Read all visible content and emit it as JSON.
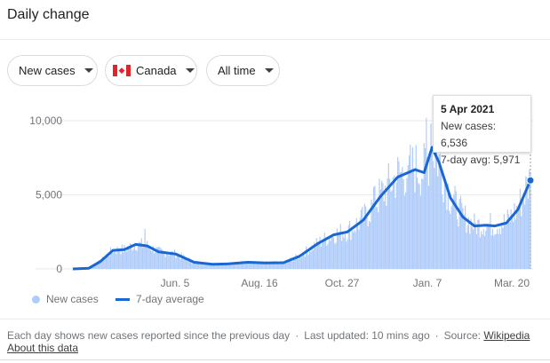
{
  "header": {
    "title": "Daily change"
  },
  "filters": {
    "metric": "New cases",
    "country": "Canada",
    "country_flag_icon": "canada-flag-icon",
    "range": "All time"
  },
  "tooltip": {
    "date": "5 Apr 2021",
    "new_cases_label": "New cases:",
    "new_cases_value": "6,536",
    "avg_label": "7-day avg:",
    "avg_value": "5,971"
  },
  "legend": {
    "bars": "New cases",
    "line": "7-day average"
  },
  "footer": {
    "note": "Each day shows new cases reported since the previous day",
    "updated": "Last updated: 10 mins ago",
    "source_label": "Source:",
    "source_link": "Wikipedia",
    "about": "About this data"
  },
  "colors": {
    "bars": "#aecbfa",
    "line": "#1967d2",
    "grid": "#e8eaed",
    "text": "#70757a"
  },
  "chart_data": {
    "type": "bar",
    "y_ticks": [
      {
        "value": 0,
        "label": "0"
      },
      {
        "value": 5000,
        "label": "5,000"
      },
      {
        "value": 10000,
        "label": "10,000"
      }
    ],
    "x_ticks": [
      "Jun. 5",
      "Aug. 16",
      "Oct. 27",
      "Jan. 7",
      "Mar. 20"
    ],
    "ylim": [
      0,
      10000
    ],
    "grid": true,
    "legend": "bottom-left",
    "series": [
      {
        "name": "7-day average",
        "type": "line",
        "points": [
          [
            "2020-03-01",
            0
          ],
          [
            "2020-03-15",
            50
          ],
          [
            "2020-03-25",
            500
          ],
          [
            "2020-04-05",
            1250
          ],
          [
            "2020-04-15",
            1300
          ],
          [
            "2020-04-25",
            1650
          ],
          [
            "2020-05-05",
            1550
          ],
          [
            "2020-05-15",
            1150
          ],
          [
            "2020-05-30",
            1000
          ],
          [
            "2020-06-15",
            450
          ],
          [
            "2020-07-01",
            320
          ],
          [
            "2020-07-15",
            340
          ],
          [
            "2020-08-01",
            450
          ],
          [
            "2020-08-16",
            400
          ],
          [
            "2020-09-01",
            420
          ],
          [
            "2020-09-15",
            850
          ],
          [
            "2020-10-01",
            1700
          ],
          [
            "2020-10-15",
            2300
          ],
          [
            "2020-10-27",
            2500
          ],
          [
            "2020-11-10",
            3300
          ],
          [
            "2020-11-25",
            4900
          ],
          [
            "2020-12-10",
            6200
          ],
          [
            "2020-12-25",
            6700
          ],
          [
            "2021-01-02",
            6500
          ],
          [
            "2021-01-09",
            8200
          ],
          [
            "2021-01-15",
            7200
          ],
          [
            "2021-01-25",
            4800
          ],
          [
            "2021-02-05",
            3500
          ],
          [
            "2021-02-15",
            2900
          ],
          [
            "2021-02-25",
            2950
          ],
          [
            "2021-03-05",
            2900
          ],
          [
            "2021-03-15",
            3100
          ],
          [
            "2021-03-25",
            4000
          ],
          [
            "2021-04-05",
            5971
          ]
        ]
      },
      {
        "name": "New cases",
        "type": "bar",
        "spikes": [
          [
            "2020-05-03",
            2700
          ],
          [
            "2020-11-20",
            5600
          ],
          [
            "2020-12-01",
            6100
          ],
          [
            "2020-12-19",
            7000
          ],
          [
            "2020-12-28",
            5800
          ],
          [
            "2021-01-04",
            10200
          ],
          [
            "2021-01-08",
            9800
          ],
          [
            "2021-01-12",
            7600
          ],
          [
            "2021-04-05",
            6536
          ]
        ]
      }
    ]
  }
}
